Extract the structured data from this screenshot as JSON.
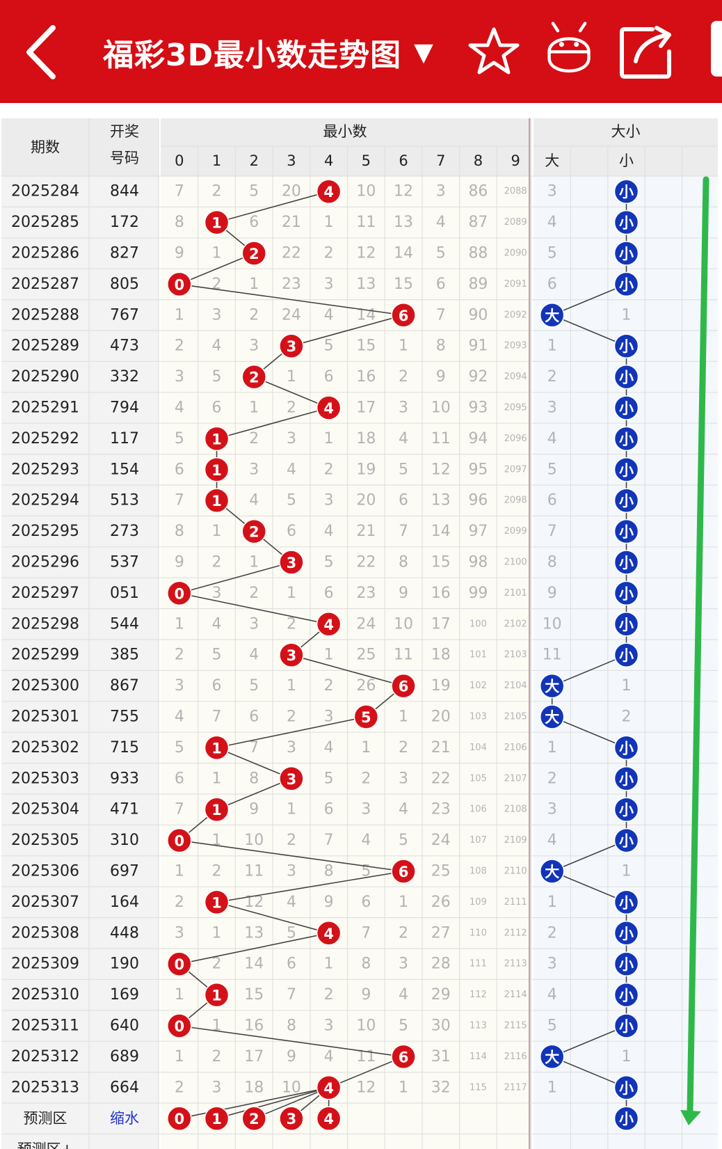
{
  "header": {
    "title": "福彩3D最小数走势图",
    "dropdown_glyph": "▼",
    "icons": [
      "back-arrow-icon",
      "star-icon",
      "robot-icon",
      "share-icon"
    ],
    "bg_color": "#d40e14"
  },
  "table": {
    "col_period": "期数",
    "col_draw_line1": "开奖",
    "col_draw_line2": "号码",
    "group_min": "最小数",
    "group_size": "大小",
    "digit_headers": [
      "0",
      "1",
      "2",
      "3",
      "4",
      "5",
      "6",
      "7",
      "8",
      "9"
    ],
    "size_headers": [
      "大",
      "",
      "小",
      ""
    ],
    "rows": [
      {
        "period": "2025284",
        "draw": "844",
        "miss": [
          "7",
          "2",
          "5",
          "20",
          "4",
          "10",
          "12",
          "3",
          "86",
          "2088"
        ],
        "hit": 4,
        "size": "small",
        "big_miss": "3"
      },
      {
        "period": "2025285",
        "draw": "172",
        "miss": [
          "8",
          "1",
          "6",
          "21",
          "1",
          "11",
          "13",
          "4",
          "87",
          "2089"
        ],
        "hit": 1,
        "size": "small",
        "big_miss": "4"
      },
      {
        "period": "2025286",
        "draw": "827",
        "miss": [
          "9",
          "1",
          "2",
          "22",
          "2",
          "12",
          "14",
          "5",
          "88",
          "2090"
        ],
        "hit": 2,
        "size": "small",
        "big_miss": "5"
      },
      {
        "period": "2025287",
        "draw": "805",
        "miss": [
          "0",
          "2",
          "1",
          "23",
          "3",
          "13",
          "15",
          "6",
          "89",
          "2091"
        ],
        "hit": 0,
        "size": "small",
        "big_miss": "6"
      },
      {
        "period": "2025288",
        "draw": "767",
        "miss": [
          "1",
          "3",
          "2",
          "24",
          "4",
          "14",
          "6",
          "7",
          "90",
          "2092"
        ],
        "hit": 6,
        "size": "big",
        "small_miss": "1"
      },
      {
        "period": "2025289",
        "draw": "473",
        "miss": [
          "2",
          "4",
          "3",
          "3",
          "5",
          "15",
          "1",
          "8",
          "91",
          "2093"
        ],
        "hit": 3,
        "size": "small",
        "big_miss": "1"
      },
      {
        "period": "2025290",
        "draw": "332",
        "miss": [
          "3",
          "5",
          "2",
          "1",
          "6",
          "16",
          "2",
          "9",
          "92",
          "2094"
        ],
        "hit": 2,
        "size": "small",
        "big_miss": "2"
      },
      {
        "period": "2025291",
        "draw": "794",
        "miss": [
          "4",
          "6",
          "1",
          "2",
          "4",
          "17",
          "3",
          "10",
          "93",
          "2095"
        ],
        "hit": 4,
        "size": "small",
        "big_miss": "3"
      },
      {
        "period": "2025292",
        "draw": "117",
        "miss": [
          "5",
          "1",
          "2",
          "3",
          "1",
          "18",
          "4",
          "11",
          "94",
          "2096"
        ],
        "hit": 1,
        "size": "small",
        "big_miss": "4"
      },
      {
        "period": "2025293",
        "draw": "154",
        "miss": [
          "6",
          "1",
          "3",
          "4",
          "2",
          "19",
          "5",
          "12",
          "95",
          "2097"
        ],
        "hit": 1,
        "size": "small",
        "big_miss": "5"
      },
      {
        "period": "2025294",
        "draw": "513",
        "miss": [
          "7",
          "1",
          "4",
          "5",
          "3",
          "20",
          "6",
          "13",
          "96",
          "2098"
        ],
        "hit": 1,
        "size": "small",
        "big_miss": "6"
      },
      {
        "period": "2025295",
        "draw": "273",
        "miss": [
          "8",
          "1",
          "2",
          "6",
          "4",
          "21",
          "7",
          "14",
          "97",
          "2099"
        ],
        "hit": 2,
        "size": "small",
        "big_miss": "7"
      },
      {
        "period": "2025296",
        "draw": "537",
        "miss": [
          "9",
          "2",
          "1",
          "3",
          "5",
          "22",
          "8",
          "15",
          "98",
          "2100"
        ],
        "hit": 3,
        "size": "small",
        "big_miss": "8"
      },
      {
        "period": "2025297",
        "draw": "051",
        "miss": [
          "0",
          "3",
          "2",
          "1",
          "6",
          "23",
          "9",
          "16",
          "99",
          "2101"
        ],
        "hit": 0,
        "size": "small",
        "big_miss": "9"
      },
      {
        "period": "2025298",
        "draw": "544",
        "miss": [
          "1",
          "4",
          "3",
          "2",
          "4",
          "24",
          "10",
          "17",
          "100",
          "2102"
        ],
        "hit": 4,
        "size": "small",
        "big_miss": "10"
      },
      {
        "period": "2025299",
        "draw": "385",
        "miss": [
          "2",
          "5",
          "4",
          "3",
          "1",
          "25",
          "11",
          "18",
          "101",
          "2103"
        ],
        "hit": 3,
        "size": "small",
        "big_miss": "11"
      },
      {
        "period": "2025300",
        "draw": "867",
        "miss": [
          "3",
          "6",
          "5",
          "1",
          "2",
          "26",
          "6",
          "19",
          "102",
          "2104"
        ],
        "hit": 6,
        "size": "big",
        "small_miss": "1"
      },
      {
        "period": "2025301",
        "draw": "755",
        "miss": [
          "4",
          "7",
          "6",
          "2",
          "3",
          "5",
          "1",
          "20",
          "103",
          "2105"
        ],
        "hit": 5,
        "size": "big",
        "small_miss": "2"
      },
      {
        "period": "2025302",
        "draw": "715",
        "miss": [
          "5",
          "1",
          "7",
          "3",
          "4",
          "1",
          "2",
          "21",
          "104",
          "2106"
        ],
        "hit": 1,
        "size": "small",
        "big_miss": "1"
      },
      {
        "period": "2025303",
        "draw": "933",
        "miss": [
          "6",
          "1",
          "8",
          "3",
          "5",
          "2",
          "3",
          "22",
          "105",
          "2107"
        ],
        "hit": 3,
        "size": "small",
        "big_miss": "2"
      },
      {
        "period": "2025304",
        "draw": "471",
        "miss": [
          "7",
          "1",
          "9",
          "1",
          "6",
          "3",
          "4",
          "23",
          "106",
          "2108"
        ],
        "hit": 1,
        "size": "small",
        "big_miss": "3"
      },
      {
        "period": "2025305",
        "draw": "310",
        "miss": [
          "0",
          "1",
          "10",
          "2",
          "7",
          "4",
          "5",
          "24",
          "107",
          "2109"
        ],
        "hit": 0,
        "size": "small",
        "big_miss": "4"
      },
      {
        "period": "2025306",
        "draw": "697",
        "miss": [
          "1",
          "2",
          "11",
          "3",
          "8",
          "5",
          "6",
          "25",
          "108",
          "2110"
        ],
        "hit": 6,
        "size": "big",
        "small_miss": "1"
      },
      {
        "period": "2025307",
        "draw": "164",
        "miss": [
          "2",
          "1",
          "12",
          "4",
          "9",
          "6",
          "1",
          "26",
          "109",
          "2111"
        ],
        "hit": 1,
        "size": "small",
        "big_miss": "1"
      },
      {
        "period": "2025308",
        "draw": "448",
        "miss": [
          "3",
          "1",
          "13",
          "5",
          "4",
          "7",
          "2",
          "27",
          "110",
          "2112"
        ],
        "hit": 4,
        "size": "small",
        "big_miss": "2"
      },
      {
        "period": "2025309",
        "draw": "190",
        "miss": [
          "0",
          "2",
          "14",
          "6",
          "1",
          "8",
          "3",
          "28",
          "111",
          "2113"
        ],
        "hit": 0,
        "size": "small",
        "big_miss": "3"
      },
      {
        "period": "2025310",
        "draw": "169",
        "miss": [
          "1",
          "1",
          "15",
          "7",
          "2",
          "9",
          "4",
          "29",
          "112",
          "2114"
        ],
        "hit": 1,
        "size": "small",
        "big_miss": "4"
      },
      {
        "period": "2025311",
        "draw": "640",
        "miss": [
          "0",
          "1",
          "16",
          "8",
          "3",
          "10",
          "5",
          "30",
          "113",
          "2115"
        ],
        "hit": 0,
        "size": "small",
        "big_miss": "5"
      },
      {
        "period": "2025312",
        "draw": "689",
        "miss": [
          "1",
          "2",
          "17",
          "9",
          "4",
          "11",
          "6",
          "31",
          "114",
          "2116"
        ],
        "hit": 6,
        "size": "big",
        "small_miss": "1"
      },
      {
        "period": "2025313",
        "draw": "664",
        "miss": [
          "2",
          "3",
          "18",
          "10",
          "4",
          "12",
          "1",
          "32",
          "115",
          "2117"
        ],
        "hit": 4,
        "size": "small",
        "big_miss": "1"
      }
    ],
    "predict_row": {
      "label": "预测区",
      "link": "缩水",
      "balls": [
        "0",
        "1",
        "2",
        "3",
        "4"
      ],
      "size": "小"
    },
    "predict_row2": {
      "label": "预测区+"
    },
    "big_label": "大",
    "small_label": "小",
    "colors": {
      "ball_red": "#d41118",
      "ball_blue": "#1235b8",
      "trend_green": "#2fb84a",
      "grid": "#e0e0e0"
    }
  }
}
